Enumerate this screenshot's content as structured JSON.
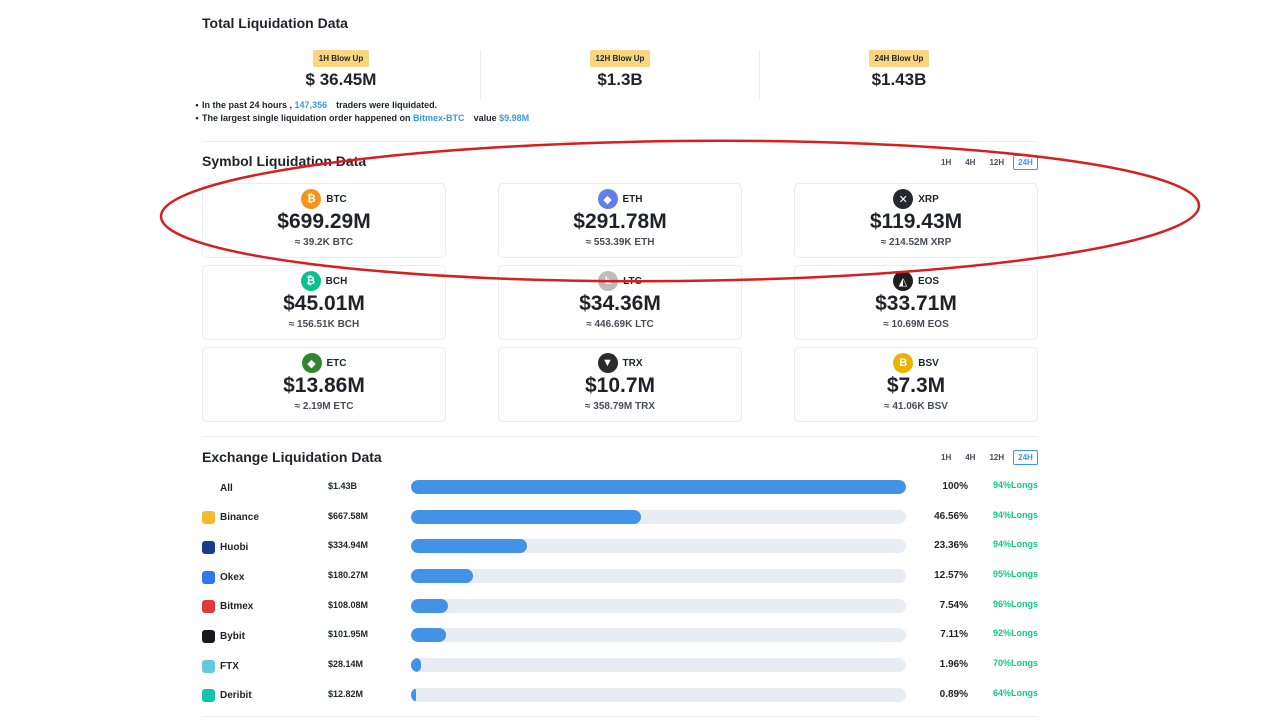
{
  "total": {
    "title": "Total Liquidation Data",
    "columns": [
      {
        "badge": "1H Blow Up",
        "value": "$ 36.45M"
      },
      {
        "badge": "12H Blow Up",
        "value": "$1.3B"
      },
      {
        "badge": "24H Blow Up",
        "value": "$1.43B"
      }
    ],
    "note1": {
      "prefix": "In the past 24 hours ,",
      "count": "147,356",
      "suffix": "traders were liquidated."
    },
    "note2": {
      "prefix": "The largest single liquidation order happened on",
      "pair": "Bitmex-BTC",
      "label": "value",
      "value": "$9.98M"
    }
  },
  "symbol": {
    "title": "Symbol Liquidation Data",
    "timeframes": [
      "1H",
      "4H",
      "12H",
      "24H"
    ],
    "active_timeframe": "24H",
    "cards": [
      {
        "name": "BTC",
        "value": "$699.29M",
        "sub": "≈ 39.2K BTC",
        "icon": "btc-icon",
        "glyph": "₿",
        "color": "#f7931a"
      },
      {
        "name": "ETH",
        "value": "$291.78M",
        "sub": "≈ 553.39K ETH",
        "icon": "eth-icon",
        "glyph": "◆",
        "color": "#627eea"
      },
      {
        "name": "XRP",
        "value": "$119.43M",
        "sub": "≈ 214.52M XRP",
        "icon": "xrp-icon",
        "glyph": "✕",
        "color": "#23292f"
      },
      {
        "name": "BCH",
        "value": "$45.01M",
        "sub": "≈ 156.51K BCH",
        "icon": "bch-icon",
        "glyph": "₿",
        "color": "#0ac18e"
      },
      {
        "name": "LTC",
        "value": "$34.36M",
        "sub": "≈ 446.69K LTC",
        "icon": "ltc-icon",
        "glyph": "Ł",
        "color": "#bfbbbb"
      },
      {
        "name": "EOS",
        "value": "$33.71M",
        "sub": "≈ 10.69M EOS",
        "icon": "eos-icon",
        "glyph": "◭",
        "color": "#1e1e1e"
      },
      {
        "name": "ETC",
        "value": "$13.86M",
        "sub": "≈ 2.19M ETC",
        "icon": "etc-icon",
        "glyph": "◆",
        "color": "#328332"
      },
      {
        "name": "TRX",
        "value": "$10.7M",
        "sub": "≈ 358.79M TRX",
        "icon": "trx-icon",
        "glyph": "▼",
        "color": "#2b2b2b"
      },
      {
        "name": "BSV",
        "value": "$7.3M",
        "sub": "≈ 41.06K BSV",
        "icon": "bsv-icon",
        "glyph": "B",
        "color": "#eab300"
      }
    ]
  },
  "exchange": {
    "title": "Exchange Liquidation Data",
    "timeframes": [
      "1H",
      "4H",
      "12H",
      "24H"
    ],
    "active_timeframe": "24H",
    "rows": [
      {
        "name": "All",
        "amount": "$1.43B",
        "percent_label": "100%",
        "share": 100,
        "longs": "94%Longs",
        "icon": ""
      },
      {
        "name": "Binance",
        "amount": "$667.58M",
        "percent_label": "46.56%",
        "share": 46.56,
        "longs": "94%Longs",
        "icon": "binance-icon",
        "color": "#f3ba2f"
      },
      {
        "name": "Huobi",
        "amount": "$334.94M",
        "percent_label": "23.36%",
        "share": 23.36,
        "longs": "94%Longs",
        "icon": "huobi-icon",
        "color": "#1b3a8c"
      },
      {
        "name": "Okex",
        "amount": "$180.27M",
        "percent_label": "12.57%",
        "share": 12.57,
        "longs": "95%Longs",
        "icon": "okex-icon",
        "color": "#2f77ed"
      },
      {
        "name": "Bitmex",
        "amount": "$108.08M",
        "percent_label": "7.54%",
        "share": 7.54,
        "longs": "96%Longs",
        "icon": "bitmex-icon",
        "color": "#e0393e"
      },
      {
        "name": "Bybit",
        "amount": "$101.95M",
        "percent_label": "7.11%",
        "share": 7.11,
        "longs": "92%Longs",
        "icon": "bybit-icon",
        "color": "#17181e"
      },
      {
        "name": "FTX",
        "amount": "$28.14M",
        "percent_label": "1.96%",
        "share": 1.96,
        "longs": "70%Longs",
        "icon": "ftx-icon",
        "color": "#5fcade"
      },
      {
        "name": "Deribit",
        "amount": "$12.82M",
        "percent_label": "0.89%",
        "share": 0.89,
        "longs": "64%Longs",
        "icon": "deribit-icon",
        "color": "#13c3ad"
      }
    ]
  },
  "colors": {
    "accent": "#3b98e8",
    "bar": "#4293e8",
    "long_green": "#0ecb81",
    "badge": "#f8d57e",
    "annotation": "#d81e1e"
  }
}
